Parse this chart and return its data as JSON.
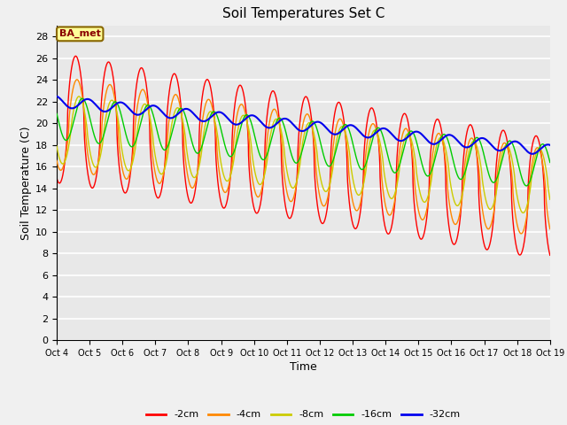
{
  "title": "Soil Temperatures Set C",
  "xlabel": "Time",
  "ylabel": "Soil Temperature (C)",
  "ylim": [
    0,
    29
  ],
  "yticks": [
    0,
    2,
    4,
    6,
    8,
    10,
    12,
    14,
    16,
    18,
    20,
    22,
    24,
    26,
    28
  ],
  "xtick_labels": [
    "Oct 4",
    "Oct 5",
    "Oct 6",
    "Oct 7",
    "Oct 8",
    "Oct 9",
    "Oct 10",
    "Oct 11",
    "Oct 12",
    "Oct 13",
    "Oct 14",
    "Oct 15",
    "Oct 16",
    "Oct 17",
    "Oct 18",
    "Oct 19"
  ],
  "colors": {
    "-2cm": "#ff0000",
    "-4cm": "#ff8800",
    "-8cm": "#cccc00",
    "-16cm": "#00cc00",
    "-32cm": "#0000ee"
  },
  "legend_label": "BA_met",
  "legend_bg": "#ffff99",
  "legend_border": "#886600",
  "plot_bg": "#e8e8e8",
  "fig_bg": "#f0f0f0",
  "grid_color": "#ffffff",
  "n_days": 15,
  "figsize": [
    6.4,
    4.8
  ],
  "dpi": 100
}
